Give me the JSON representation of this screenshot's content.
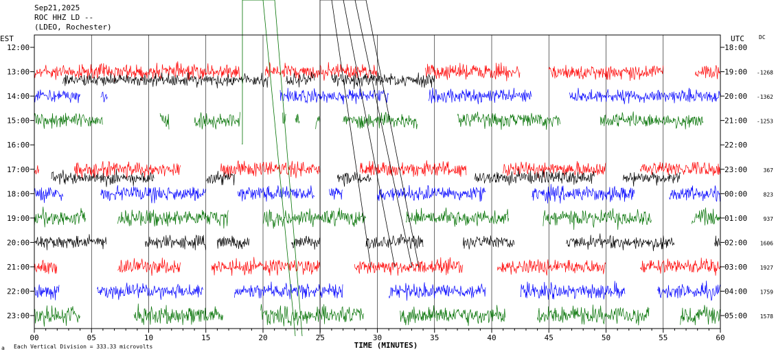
{
  "header": {
    "date": "Sep21,2025",
    "station": "ROC HHZ LD --",
    "network": "(LDEO, Rochester)"
  },
  "left_axis_title": "EST",
  "right_axis_title": "UTC",
  "dc_title": "DC",
  "footer_note": "Each Vertical Division =  333.33 microvolts",
  "chart_data": {
    "type": "line",
    "title": "",
    "xlabel": "TIME (MINUTES)",
    "xlim": [
      0,
      60
    ],
    "x_ticks": [
      "00",
      "05",
      "10",
      "15",
      "20",
      "25",
      "30",
      "35",
      "40",
      "45",
      "50",
      "55",
      "60"
    ],
    "y_left_ticks": [
      "12:00",
      "13:00",
      "14:00",
      "15:00",
      "16:00",
      "17:00",
      "18:00",
      "19:00",
      "20:00",
      "21:00",
      "22:00",
      "23:00"
    ],
    "y_right_ticks": [
      "18:00",
      "19:00",
      "20:00",
      "21:00",
      "22:00",
      "23:00",
      "00:00",
      "01:00",
      "02:00",
      "03:00",
      "04:00",
      "05:00"
    ],
    "dc_offsets": [
      "",
      "-1268",
      "-1362",
      "-1253",
      "",
      "367",
      "823",
      "937",
      "1606",
      "1927",
      "1759",
      "1578"
    ],
    "trace_colors": [
      "#000000",
      "#ff0000",
      "#0000ff",
      "#007000"
    ],
    "rows": [
      {
        "hour": "12:00",
        "color": "#000000",
        "amp": 0,
        "segments": []
      },
      {
        "hour": "13:00",
        "color": "#ff0000",
        "amp": 0.45,
        "segments": [
          [
            0,
            18
          ],
          [
            20.2,
            30
          ],
          [
            34.2,
            42.5
          ],
          [
            45,
            55
          ],
          [
            57.8,
            60
          ]
        ]
      },
      {
        "hour": "14:00",
        "color": "#0000ff",
        "amp": 0.4,
        "segments": [
          [
            0,
            4
          ],
          [
            5.8,
            6.4
          ],
          [
            21.5,
            31
          ],
          [
            34.5,
            43.5
          ],
          [
            46.8,
            60
          ]
        ]
      },
      {
        "hour": "15:00",
        "color": "#007000",
        "amp": 0.45,
        "segments": [
          [
            0,
            6
          ],
          [
            11,
            11.8
          ],
          [
            14,
            18
          ],
          [
            21.7,
            22
          ],
          [
            22.8,
            23.2
          ],
          [
            24.6,
            25
          ],
          [
            27,
            33.5
          ],
          [
            37,
            46
          ],
          [
            49.5,
            58.5
          ]
        ]
      },
      {
        "hour": "16:00",
        "color": "#000000",
        "amp": 0,
        "segments": []
      },
      {
        "hour": "17:00",
        "color": "#ff0000",
        "amp": 0.45,
        "segments": [
          [
            0,
            0.4
          ],
          [
            3.5,
            12.8
          ],
          [
            16.3,
            25
          ],
          [
            28.5,
            37.8
          ],
          [
            41,
            50
          ],
          [
            53,
            60
          ]
        ]
      },
      {
        "hour": "18:00",
        "color": "#0000ff",
        "amp": 0.45,
        "segments": [
          [
            0,
            2.5
          ],
          [
            5.8,
            15
          ],
          [
            17.8,
            24.5
          ],
          [
            25.8,
            27
          ],
          [
            30,
            39.5
          ],
          [
            43.5,
            52.5
          ],
          [
            55.5,
            60
          ]
        ]
      },
      {
        "hour": "19:00",
        "color": "#007000",
        "amp": 0.5,
        "segments": [
          [
            0,
            4.5
          ],
          [
            7.3,
            17
          ],
          [
            20,
            29
          ],
          [
            32.5,
            41.5
          ],
          [
            44.5,
            54
          ],
          [
            57.5,
            60
          ]
        ]
      },
      {
        "hour": "20:00",
        "color": "#000000",
        "amp": 0.4,
        "segments": [
          [
            0,
            6.3
          ],
          [
            9.7,
            15
          ],
          [
            16,
            18.8
          ],
          [
            22.5,
            25
          ],
          [
            29,
            34
          ],
          [
            37.5,
            42
          ],
          [
            46.5,
            56
          ],
          [
            59.5,
            60
          ]
        ]
      },
      {
        "hour": "21:00",
        "color": "#ff0000",
        "amp": 0.45,
        "segments": [
          [
            0,
            2
          ],
          [
            7.3,
            12.8
          ],
          [
            15.5,
            25
          ],
          [
            28,
            37.5
          ],
          [
            40.5,
            50
          ],
          [
            53,
            60
          ]
        ]
      },
      {
        "hour": "22:00",
        "color": "#0000ff",
        "amp": 0.45,
        "segments": [
          [
            0,
            2.2
          ],
          [
            5.5,
            14.8
          ],
          [
            17.5,
            27
          ],
          [
            31,
            39.5
          ],
          [
            42.5,
            51.7
          ],
          [
            54.5,
            60
          ]
        ]
      },
      {
        "hour": "23:00",
        "color": "#007000",
        "amp": 0.55,
        "segments": [
          [
            0,
            4
          ],
          [
            8.7,
            16.5
          ],
          [
            19.8,
            28.8
          ],
          [
            32,
            41.2
          ],
          [
            44,
            53.8
          ],
          [
            56.5,
            60
          ]
        ]
      }
    ],
    "black_overlay": [
      {
        "row": 1,
        "segments": [
          [
            2.5,
            20.5
          ],
          [
            22,
            24.5
          ],
          [
            26,
            35
          ]
        ]
      },
      {
        "row": 5,
        "segments": [
          [
            1.5,
            10.5
          ],
          [
            15,
            17.5
          ],
          [
            26.5,
            29.5
          ],
          [
            38.5,
            49
          ],
          [
            51.5,
            56.5
          ]
        ]
      }
    ]
  }
}
